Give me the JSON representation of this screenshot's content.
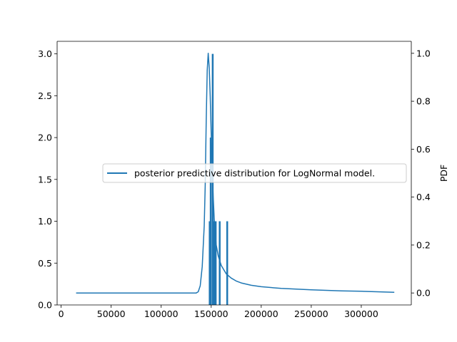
{
  "chart_data": {
    "type": "bar+line",
    "title": "",
    "xlabel": "",
    "ylabel_left": "",
    "ylabel_right": "PDF",
    "xlim": [
      -4000,
      350000
    ],
    "ylim_left": [
      0,
      3.15
    ],
    "ylim_right": [
      -0.05,
      1.05
    ],
    "xticks": [
      0,
      50000,
      100000,
      150000,
      200000,
      250000,
      300000
    ],
    "xtick_labels": [
      "0",
      "50000",
      "100000",
      "150000",
      "200000",
      "250000",
      "300000"
    ],
    "yticks_left": [
      0.0,
      0.5,
      1.0,
      1.5,
      2.0,
      2.5,
      3.0
    ],
    "ytick_labels_left": [
      "0.0",
      "0.5",
      "1.0",
      "1.5",
      "2.0",
      "2.5",
      "3.0"
    ],
    "yticks_right": [
      0.0,
      0.2,
      0.4,
      0.6,
      0.8,
      1.0
    ],
    "ytick_labels_right": [
      "0.0",
      "0.2",
      "0.4",
      "0.6",
      "0.8",
      "1.0"
    ],
    "grid": false,
    "legend_placement": "center-right",
    "series_color": "#1f77b4",
    "bars": {
      "axis": "left",
      "values": [
        {
          "x": 148500,
          "y": 1.0
        },
        {
          "x": 149500,
          "y": 2.0
        },
        {
          "x": 151500,
          "y": 3.0
        },
        {
          "x": 153000,
          "y": 1.0
        },
        {
          "x": 154500,
          "y": 1.0
        },
        {
          "x": 158500,
          "y": 1.0
        },
        {
          "x": 166000,
          "y": 1.0
        }
      ]
    },
    "series": [
      {
        "name": "posterior predictive distribution for LogNormal model.",
        "axis": "right",
        "x": [
          15000,
          50000,
          100000,
          130000,
          135000,
          137000,
          139000,
          141000,
          143000,
          144000,
          145000,
          146000,
          147000,
          148000,
          149000,
          150000,
          151000,
          152000,
          153000,
          154000,
          155000,
          157000,
          160000,
          165000,
          170000,
          175000,
          180000,
          190000,
          200000,
          220000,
          250000,
          280000,
          300000,
          333000
        ],
        "y": [
          0.0,
          0.0,
          0.0,
          0.0,
          0.0,
          0.005,
          0.03,
          0.11,
          0.28,
          0.45,
          0.72,
          0.93,
          1.0,
          0.94,
          0.82,
          0.66,
          0.51,
          0.4,
          0.31,
          0.25,
          0.2,
          0.155,
          0.115,
          0.08,
          0.062,
          0.05,
          0.042,
          0.032,
          0.026,
          0.019,
          0.013,
          0.009,
          0.007,
          0.003
        ]
      }
    ]
  }
}
